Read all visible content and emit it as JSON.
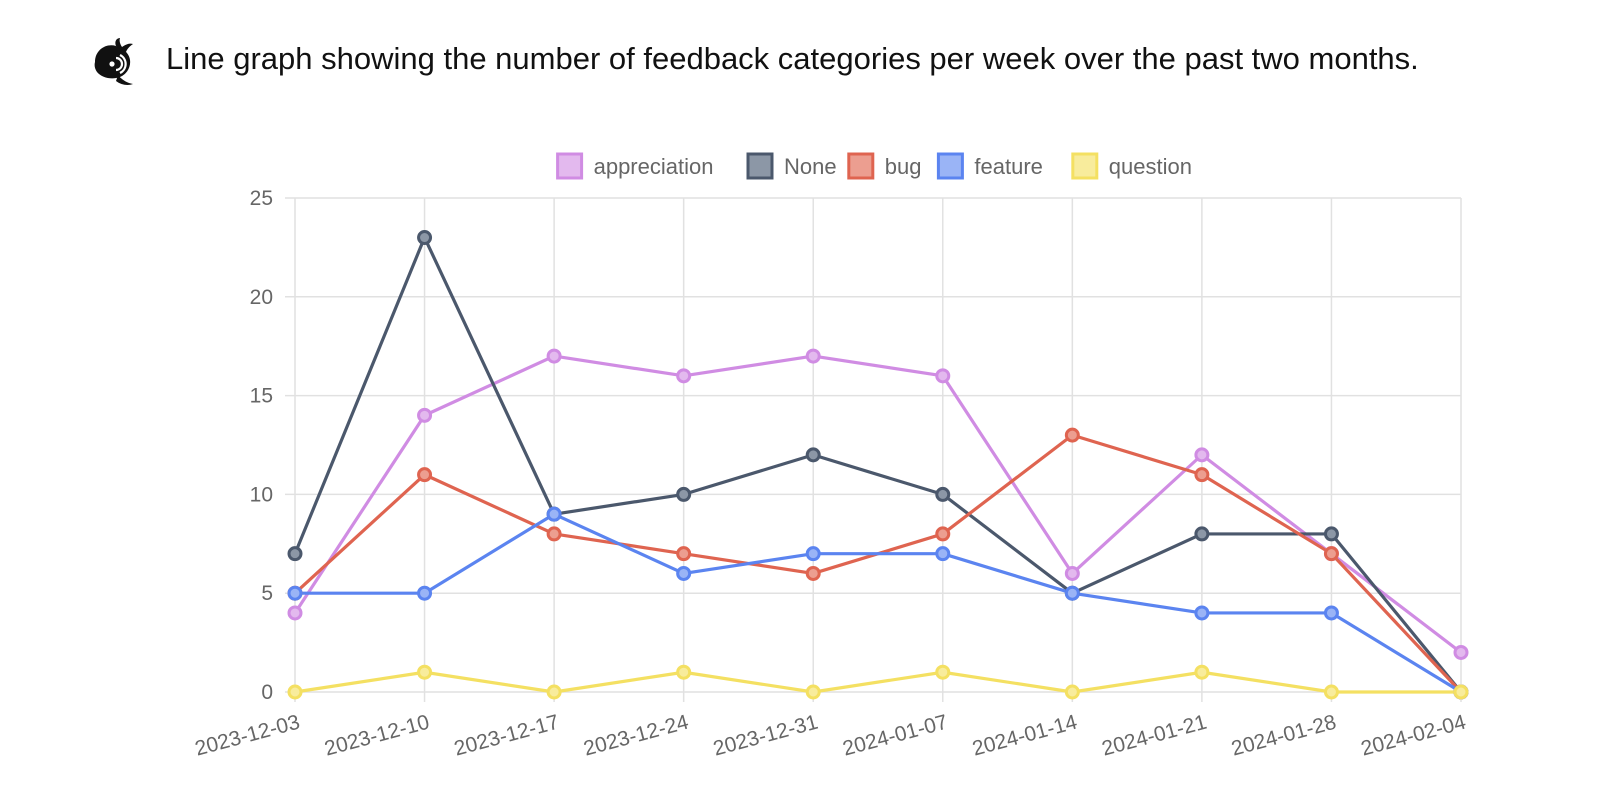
{
  "header": {
    "caption": "Line graph showing the number of feedback categories per week over the past two months.",
    "logo_icon": "whale-icon"
  },
  "chart_data": {
    "type": "line",
    "title": "",
    "xlabel": "",
    "ylabel": "",
    "categories": [
      "2023-12-03",
      "2023-12-10",
      "2023-12-17",
      "2023-12-24",
      "2023-12-31",
      "2024-01-07",
      "2024-01-14",
      "2024-01-21",
      "2024-01-28",
      "2024-02-04"
    ],
    "ylim": [
      0,
      25
    ],
    "yticks": [
      0,
      5,
      10,
      15,
      20,
      25
    ],
    "grid": true,
    "legend": "top-center",
    "series": [
      {
        "name": "appreciation",
        "color": "#d08ce3",
        "fill": "#e3b9ee",
        "values": [
          4,
          14,
          17,
          16,
          17,
          16,
          6,
          12,
          7,
          2
        ]
      },
      {
        "name": "None",
        "color": "#4b586c",
        "fill": "#8c97a6",
        "values": [
          7,
          23,
          9,
          10,
          12,
          10,
          5,
          8,
          8,
          0
        ]
      },
      {
        "name": "bug",
        "color": "#df6450",
        "fill": "#ec9e90",
        "values": [
          5,
          11,
          8,
          7,
          6,
          8,
          13,
          11,
          7,
          0
        ]
      },
      {
        "name": "feature",
        "color": "#5b84f0",
        "fill": "#9ab4f6",
        "values": [
          5,
          5,
          9,
          6,
          7,
          7,
          5,
          4,
          4,
          0
        ]
      },
      {
        "name": "question",
        "color": "#f4e062",
        "fill": "#f8ec9c",
        "values": [
          0,
          1,
          0,
          1,
          0,
          1,
          0,
          1,
          0,
          0
        ]
      }
    ]
  }
}
